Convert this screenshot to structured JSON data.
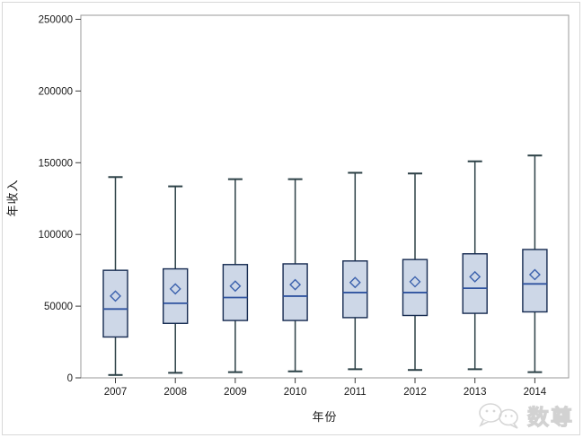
{
  "chart_data": {
    "type": "boxplot",
    "title": "",
    "xlabel": "年份",
    "ylabel": "年收入",
    "ylim": [
      0,
      250000
    ],
    "ytick_labels": [
      "0",
      "50000",
      "100000",
      "150000",
      "200000",
      "250000"
    ],
    "ytick_values": [
      0,
      50000,
      100000,
      150000,
      200000,
      250000
    ],
    "categories": [
      "2007",
      "2008",
      "2009",
      "2010",
      "2011",
      "2012",
      "2013",
      "2014"
    ],
    "grid": false,
    "legend": "none",
    "marker": "mean-diamond",
    "series": [
      {
        "year": "2007",
        "whisker_low": 2000,
        "q1": 28500,
        "median": 48000,
        "mean": 57000,
        "q3": 75000,
        "whisker_high": 140000
      },
      {
        "year": "2008",
        "whisker_low": 3500,
        "q1": 38000,
        "median": 52000,
        "mean": 62000,
        "q3": 76000,
        "whisker_high": 133500
      },
      {
        "year": "2009",
        "whisker_low": 4000,
        "q1": 40000,
        "median": 56000,
        "mean": 64000,
        "q3": 79000,
        "whisker_high": 138500
      },
      {
        "year": "2010",
        "whisker_low": 4500,
        "q1": 40000,
        "median": 57000,
        "mean": 65000,
        "q3": 79500,
        "whisker_high": 138500
      },
      {
        "year": "2011",
        "whisker_low": 6000,
        "q1": 42000,
        "median": 59500,
        "mean": 66500,
        "q3": 81500,
        "whisker_high": 143000
      },
      {
        "year": "2012",
        "whisker_low": 5500,
        "q1": 43500,
        "median": 59500,
        "mean": 67000,
        "q3": 82500,
        "whisker_high": 142500
      },
      {
        "year": "2013",
        "whisker_low": 6000,
        "q1": 45000,
        "median": 62500,
        "mean": 70500,
        "q3": 86500,
        "whisker_high": 151000
      },
      {
        "year": "2014",
        "whisker_low": 4000,
        "q1": 46000,
        "median": 65500,
        "mean": 72000,
        "q3": 89500,
        "whisker_high": 155000
      }
    ]
  },
  "colors": {
    "box_fill": "#cdd7e7",
    "box_border": "#152a50",
    "median": "#2f539f",
    "mean_marker": "#3b61ad",
    "whisker": "#2c4046",
    "frame": "#9a9a9a",
    "tick": "#3a3a3a",
    "text": "#1a1a1a",
    "watermark": "#d2d2d2"
  },
  "watermark": {
    "text": "数尊",
    "icon": "wechat-icon"
  }
}
